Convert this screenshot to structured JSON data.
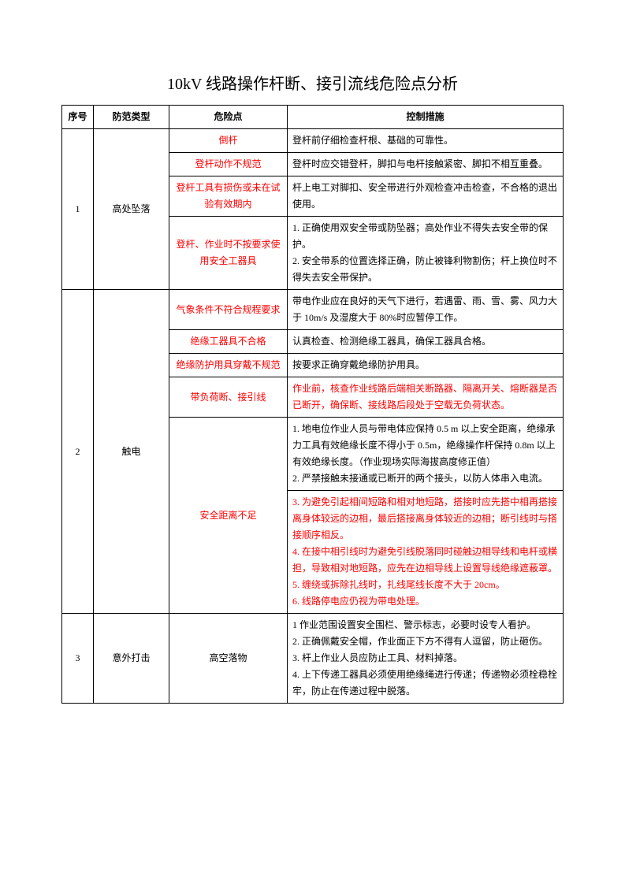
{
  "title": "10kV 线路操作杆断、接引流线危险点分析",
  "headers": {
    "col1": "序号",
    "col2": "防范类型",
    "col3": "危险点",
    "col4": "控制措施"
  },
  "colors": {
    "text": "#000000",
    "danger": "#ff0000",
    "border": "#000000",
    "background": "#ffffff"
  },
  "fonts": {
    "title_size_pt": 16,
    "body_size_pt": 10.5,
    "family": "SimSun"
  },
  "sections": [
    {
      "num": "1",
      "category": "高处坠落",
      "rows": [
        {
          "risk": "倒杆",
          "risk_red": true,
          "control": "登杆前仔细检查杆根、基础的可靠性。",
          "control_red": false
        },
        {
          "risk": "登杆动作不规范",
          "risk_red": true,
          "control": "登杆时应交错登杆，脚扣与电杆接触紧密、脚扣不相互重叠。",
          "control_red": false
        },
        {
          "risk": "登杆工具有损伤或未在试验有效期内",
          "risk_red": true,
          "control": "杆上电工对脚扣、安全带进行外观检查冲击检查，不合格的退出使用。",
          "control_red": false
        },
        {
          "risk": "登杆、作业时不按要求使用安全工器具",
          "risk_red": true,
          "control": "1. 正确使用双安全带或防坠器；高处作业不得失去安全带的保护。\n2. 安全带系的位置选择正确，防止被锋利物割伤；杆上换位时不得失去安全带保护。",
          "control_red": false
        }
      ]
    },
    {
      "num": "2",
      "category": "触电",
      "rows": [
        {
          "risk": "气象条件不符合规程要求",
          "risk_red": true,
          "control": "带电作业应在良好的天气下进行，若遇雷、雨、雪、雾、风力大于 10m/s 及湿度大于 80%时应暂停工作。",
          "control_red": false
        },
        {
          "risk": "绝缘工器具不合格",
          "risk_red": true,
          "control": "认真检查、检测绝缘工器具，确保工器具合格。",
          "control_red": false
        },
        {
          "risk": "绝缘防护用具穿戴不规范",
          "risk_red": true,
          "control": "按要求正确穿戴绝缘防护用具。",
          "control_red": false
        },
        {
          "risk": "带负荷断、接引线",
          "risk_red": true,
          "control": "作业前，核查作业线路后端相关断路器、隔离开关、熔断器是否已断开，确保断、接线路后段处于空载无负荷状态。",
          "control_red": true
        },
        {
          "risk": "安全距离不足",
          "risk_red": true,
          "control": "1. 地电位作业人员与带电体应保持 0.5 m 以上安全距离，绝缘承力工具有效绝缘长度不得小于 0.5m，绝缘操作杆保持 0.8m 以上有效绝缘长度。（作业现场实际海拔高度修正值）\n2. 严禁接触未接通或已断开的两个接头，以防人体串入电流。",
          "control_red": false,
          "control_extra_red": "3. 为避免引起相间短路和相对地短路，搭接时应先搭中相再搭接离身体较远的边相，最后搭接离身体较近的边相；断引线时与搭接顺序相反。\n4. 在接中相引线时为避免引线脱落同时碰触边相导线和电杆或横担，导致相对地短路，应先在边相导线上设置导线绝缘遮蔽罩。\n5. 缠绕或拆除扎线时，扎线尾线长度不大于 20cm。\n6. 线路停电应仍视为带电处理。"
        }
      ]
    },
    {
      "num": "3",
      "category": "意外打击",
      "rows": [
        {
          "risk": "高空落物",
          "risk_red": false,
          "control": "1 作业范围设置安全围栏、警示标志，必要时设专人看护。\n2. 正确佩戴安全帽，作业面正下方不得有人逗留，防止砸伤。\n3. 杆上作业人员应防止工具、材料掉落。\n4. 上下传递工器具必须使用绝缘绳进行传递；传递物必须栓稳栓牢，防止在传递过程中脱落。",
          "control_red": false
        }
      ]
    }
  ]
}
